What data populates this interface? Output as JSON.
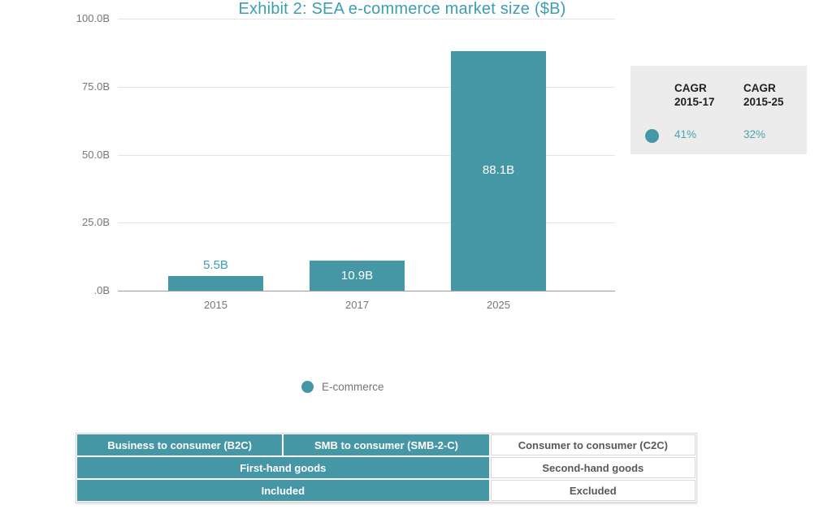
{
  "colors": {
    "accent_teal": "#4697A6",
    "title_teal": "#3B9EB3",
    "cagr_value_teal": "#4BA2B4",
    "axis_text_gray": "#767676",
    "gridline": "#E5E5E5",
    "axis_line": "#9B9B9B",
    "panel_bg": "#ECECEC",
    "table_plain_text": "#595959"
  },
  "chart_data": {
    "type": "bar",
    "title": "Exhibit 2: SEA e-commerce market size ($B)",
    "categories": [
      "2015",
      "2017",
      "2025"
    ],
    "values": [
      5.5,
      10.9,
      88.1
    ],
    "value_labels": [
      "5.5B",
      "10.9B",
      "88.1B"
    ],
    "series": [
      {
        "name": "E-commerce",
        "values": [
          5.5,
          10.9,
          88.1
        ],
        "color": "#4697A6"
      }
    ],
    "xlabel": "",
    "ylabel": "",
    "ylim": [
      0,
      100
    ],
    "ytick_values": [
      100,
      75,
      50,
      25,
      0
    ],
    "ytick_labels": [
      "100.0B",
      "75.0B",
      "50.0B",
      "25.0B",
      ".0B"
    ],
    "grid": true,
    "legend_position": "bottom",
    "annotations": {
      "cagr_2015_17": "41%",
      "cagr_2015_25": "32%"
    }
  },
  "legend": {
    "label": "E-commerce"
  },
  "cagr_panel": {
    "columns": [
      {
        "header_line1": "CAGR",
        "header_line2": "2015-17",
        "value": "41%"
      },
      {
        "header_line1": "CAGR",
        "header_line2": "2015-25",
        "value": "32%"
      }
    ]
  },
  "table": {
    "rows": [
      {
        "cells": [
          {
            "text": "Business to consumer (B2C)"
          },
          {
            "text": "SMB to consumer (SMB-2-C)"
          },
          {
            "text": "Consumer to consumer (C2C)"
          }
        ]
      },
      {
        "cells": [
          {
            "text": "First-hand goods"
          },
          {
            "text": "Second-hand goods"
          }
        ]
      },
      {
        "cells": [
          {
            "text": "Included"
          },
          {
            "text": "Excluded"
          }
        ]
      }
    ]
  }
}
